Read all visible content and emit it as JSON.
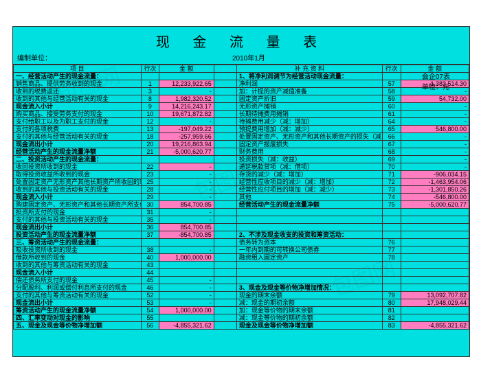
{
  "doc": {
    "title": "现 金 流 量 表",
    "formNo": "会企07表",
    "unit": "单位：元",
    "org": "编制单位：",
    "period": "2010年1月"
  },
  "hdr": {
    "item": "项    目",
    "line": "行次",
    "amt": "金    额",
    "supp": "补  充  资  料"
  },
  "colors": {
    "bg": "#00e0e0",
    "hi": "#ff7dc0"
  },
  "L": [
    {
      "t": "一、经营活动产生的现金流量：",
      "n": "",
      "a": "",
      "hi": 0,
      "b": 1
    },
    {
      "t": "销售商品、提供劳务收到的现金",
      "n": "1",
      "a": "12,233,922.65",
      "hi": 1
    },
    {
      "t": "收到的税费返还",
      "n": "3",
      "a": "-",
      "hi": 0
    },
    {
      "t": "收到的其他与经营活动有关的现金",
      "n": "8",
      "a": "1,982,320.52",
      "hi": 1
    },
    {
      "t": "现金流入小计",
      "n": "9",
      "a": "14,216,243.17",
      "hi": 1,
      "b": 1
    },
    {
      "t": "购买商品、接受劳务支付的现金",
      "n": "10",
      "a": "19,671,872.82",
      "hi": 1
    },
    {
      "t": "支付给职工以及为职工支付的现金",
      "n": "12",
      "a": "-",
      "hi": 0
    },
    {
      "t": "支付的各项税费",
      "n": "13",
      "a": "-197,049.22",
      "hi": 1
    },
    {
      "t": "支付的其他与经营活动有关的现金",
      "n": "18",
      "a": "-257,959.66",
      "hi": 1
    },
    {
      "t": "现金流出小计",
      "n": "20",
      "a": "19,216,863.94",
      "hi": 1,
      "b": 1
    },
    {
      "t": "经营活动产生的现金流量净额",
      "n": "21",
      "a": "-5,000,620.77",
      "hi": 1,
      "b": 1
    },
    {
      "t": "二、投资活动产生的现金流量：",
      "n": "",
      "a": "",
      "hi": 0,
      "b": 1
    },
    {
      "t": "收回投资所收到的现金",
      "n": "22",
      "a": "-",
      "hi": 1
    },
    {
      "t": "取得投资收益所收到的现金",
      "n": "23",
      "a": "-",
      "hi": 0
    },
    {
      "t": "处置固定资产无形资产其他长期资产所收回的现金净额",
      "n": "25",
      "a": "-",
      "hi": 0
    },
    {
      "t": "收到的其他与投资活动有关的现金",
      "n": "28",
      "a": "-",
      "hi": 0
    },
    {
      "t": "现金流入小计",
      "n": "29",
      "a": "-",
      "hi": 0,
      "b": 1
    },
    {
      "t": "购建固定资产、无形资产和其他长期资产所支付的现金",
      "n": "30",
      "a": "854,700.85",
      "hi": 1
    },
    {
      "t": "投资所支付的现金",
      "n": "31",
      "a": "-",
      "hi": 0
    },
    {
      "t": "支付的其他与投资活动有关的现金",
      "n": "35",
      "a": "-",
      "hi": 0
    },
    {
      "t": "现金流出小计",
      "n": "36",
      "a": "854,700.85",
      "hi": 1,
      "b": 1
    },
    {
      "t": "投资活动产生的现金流量净额",
      "n": "37",
      "a": "-854,700.85",
      "hi": 1,
      "b": 1
    },
    {
      "t": "三、筹资活动产生的现金流量：",
      "n": "",
      "a": "",
      "hi": 0,
      "b": 1
    },
    {
      "t": "吸收投资所收到的现金",
      "n": "38",
      "a": "-",
      "hi": 0
    },
    {
      "t": "借款所收到的现金",
      "n": "40",
      "a": "1,000,000.00",
      "hi": 1
    },
    {
      "t": "收到的其他与筹资活动有关的现金",
      "n": "43",
      "a": "",
      "hi": 0
    },
    {
      "t": "现金流入小计",
      "n": "44",
      "a": "",
      "hi": 0,
      "b": 1
    },
    {
      "t": "偿还债务所支付的现金",
      "n": "45",
      "a": "-",
      "hi": 0
    },
    {
      "t": "分配股利、利润或偿付利息所支付的现金",
      "n": "46",
      "a": "-",
      "hi": 0
    },
    {
      "t": "支付的其他与筹资活动有关的现金",
      "n": "52",
      "a": "-",
      "hi": 0
    },
    {
      "t": "现金流出小计",
      "n": "53",
      "a": "-",
      "hi": 0,
      "b": 1
    },
    {
      "t": "筹资活动产生的现金流量净额",
      "n": "54",
      "a": "1,000,000.00",
      "hi": 1,
      "b": 1
    },
    {
      "t": "四、汇率变动对现金的影响",
      "n": "55",
      "a": "",
      "hi": 0,
      "b": 1
    },
    {
      "t": "五、现金及现金等价物净增加额",
      "n": "56",
      "a": "-4,855,321.62",
      "hi": 1,
      "b": 1
    }
  ],
  "R": [
    {
      "t": "1、将净利润调节为经营活动现金流量：",
      "n": "",
      "a": "",
      "hi": 0,
      "b": 1
    },
    {
      "t": "净利润",
      "n": "57",
      "a": "-1,383,514.30",
      "hi": 1
    },
    {
      "t": "加：计提的资产减值准备",
      "n": "58",
      "a": "-",
      "hi": 0
    },
    {
      "t": "固定资产折旧",
      "n": "59",
      "a": "54,732.00",
      "hi": 1
    },
    {
      "t": "无形资产摊销",
      "n": "60",
      "a": "-",
      "hi": 0
    },
    {
      "t": "长期待摊费用摊销",
      "n": "61",
      "a": "-",
      "hi": 0
    },
    {
      "t": "待摊费用减少（减：增加）",
      "n": "64",
      "a": "-",
      "hi": 0
    },
    {
      "t": "预提费用增加（减：减少）",
      "n": "65",
      "a": "546,800.00",
      "hi": 1
    },
    {
      "t": "处置固定资产、无形资产和其他长期资产的损失（减：收益）",
      "n": "66",
      "a": "-",
      "hi": 0
    },
    {
      "t": "固定资产报废损失",
      "n": "67",
      "a": "-",
      "hi": 0
    },
    {
      "t": "财务费用",
      "n": "68",
      "a": "-",
      "hi": 0
    },
    {
      "t": "投资损失（减：收益）",
      "n": "69",
      "a": "-",
      "hi": 0
    },
    {
      "t": "递延税款贷项（减：借项）",
      "n": "70",
      "a": "-",
      "hi": 0
    },
    {
      "t": "存货的减少（减：增加）",
      "n": "71",
      "a": "-906,034.15",
      "hi": 1
    },
    {
      "t": "经营性应收项目的减少（减：增加）",
      "n": "72",
      "a": "-1,463,954.06",
      "hi": 1
    },
    {
      "t": "经营性应付项目的增加（减：减少）",
      "n": "73",
      "a": "-1,301,850.26",
      "hi": 1
    },
    {
      "t": "其他",
      "n": "74",
      "a": "-546,800.00",
      "hi": 1
    },
    {
      "t": "经营活动产生的现金流量净额",
      "n": "75",
      "a": "-5,000,620.77",
      "hi": 1,
      "b": 1
    },
    {
      "t": "",
      "n": "",
      "a": "",
      "hi": 0
    },
    {
      "t": "",
      "n": "",
      "a": "",
      "hi": 0
    },
    {
      "t": "",
      "n": "",
      "a": "",
      "hi": 0
    },
    {
      "t": "2、不涉及现金收支的投资和筹资活动：",
      "n": "",
      "a": "",
      "hi": 0,
      "b": 1
    },
    {
      "t": "债务转为资本",
      "n": "76",
      "a": "",
      "hi": 0
    },
    {
      "t": "一年内到期的可转换公司债券",
      "n": "77",
      "a": "",
      "hi": 0
    },
    {
      "t": "融资租入固定资产",
      "n": "78",
      "a": "",
      "hi": 0
    },
    {
      "t": "",
      "n": "",
      "a": "",
      "hi": 0
    },
    {
      "t": "",
      "n": "",
      "a": "",
      "hi": 0
    },
    {
      "t": "",
      "n": "",
      "a": "",
      "hi": 0
    },
    {
      "t": "3、现金及现金等价物净增加情况：",
      "n": "",
      "a": "",
      "hi": 0,
      "b": 1
    },
    {
      "t": "现金的期末余额",
      "n": "79",
      "a": "13,092,707.82",
      "hi": 1
    },
    {
      "t": "减：现金的期初余额",
      "n": "80",
      "a": "17,948,029.44",
      "hi": 1
    },
    {
      "t": "加：现金等价物的期末余额",
      "n": "81",
      "a": "",
      "hi": 0
    },
    {
      "t": "减：现金等价物的期初余额",
      "n": "82",
      "a": "",
      "hi": 0
    },
    {
      "t": "现金及现金等价物净增加额",
      "n": "83",
      "a": "-4,855,321.62",
      "hi": 1,
      "b": 1
    }
  ]
}
